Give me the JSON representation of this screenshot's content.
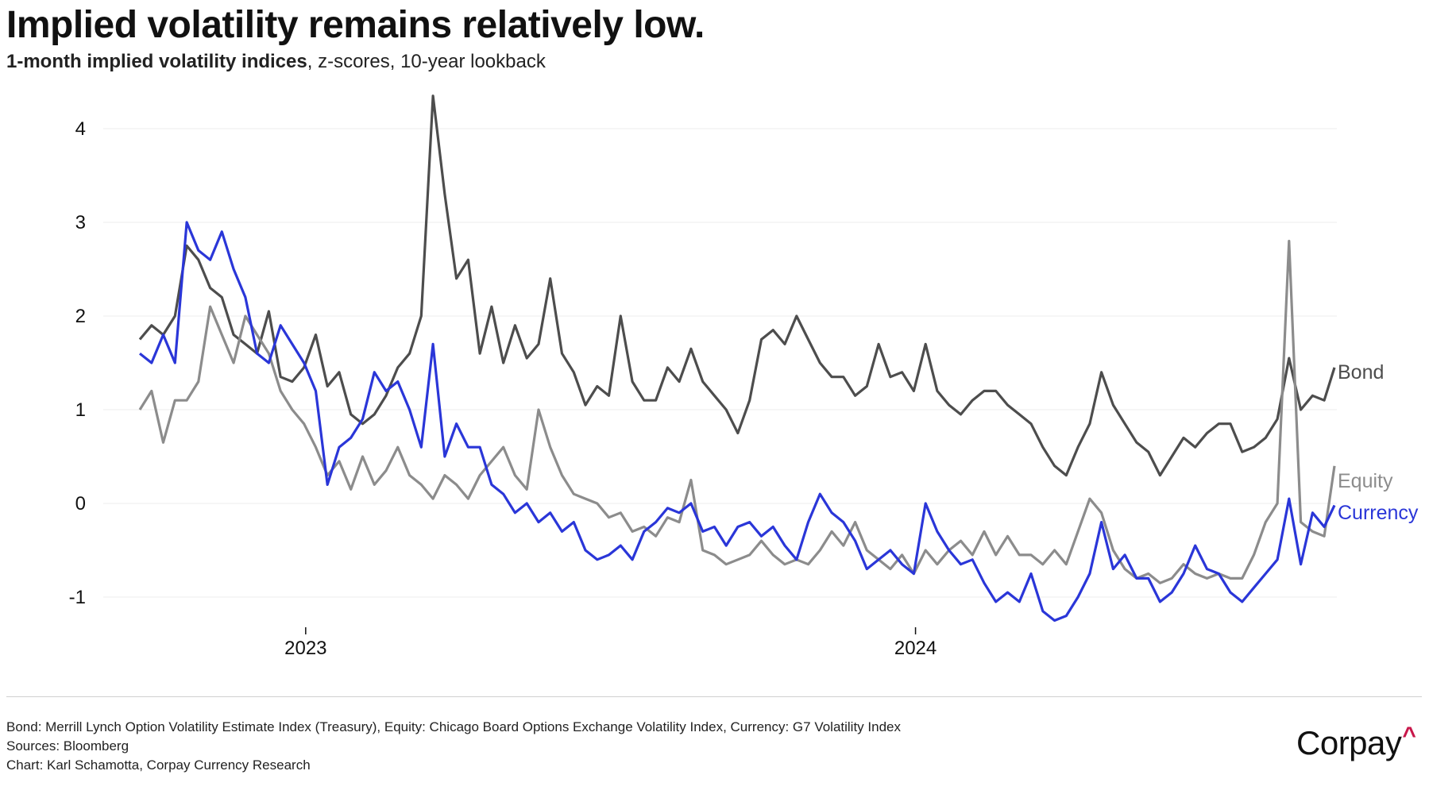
{
  "header": {
    "title": "Implied volatility remains relatively low.",
    "subtitle_strong": "1-month implied volatility indices",
    "subtitle_rest": ", z-scores, 10-year lookback"
  },
  "footer": {
    "note": "Bond: Merrill Lynch Option Volatility Estimate Index (Treasury), Equity: Chicago Board Options Exchange Volatility Index, Currency: G7 Volatility Index",
    "sources": "Sources: Bloomberg",
    "credit": "Chart: Karl Schamotta, Corpay Currency Research"
  },
  "logo": {
    "text": "Corpay",
    "mark": "^",
    "accent_color": "#c8174a"
  },
  "chart_data": {
    "type": "line",
    "title": "Implied volatility remains relatively low.",
    "subtitle": "1-month implied volatility indices, z-scores, 10-year lookback",
    "xlabel": "",
    "ylabel": "",
    "x_start": 2022.728,
    "x_step_years": 0.01923,
    "xlim": [
      2022.728,
      2024.687
    ],
    "ylim": [
      -1.2,
      4.4
    ],
    "yticks": [
      4,
      3,
      2,
      1,
      0,
      -1
    ],
    "ytick_labels": [
      "4",
      "3",
      "2",
      "1",
      "0",
      "-1"
    ],
    "xticks": [
      2023,
      2024
    ],
    "xtick_labels": [
      "2023",
      "2024"
    ],
    "grid": true,
    "legend": "inline-right",
    "series": [
      {
        "name": "Bond",
        "color": "#4d4d4d",
        "values": [
          1.75,
          1.9,
          1.8,
          2.0,
          2.75,
          2.6,
          2.3,
          2.2,
          1.8,
          1.7,
          1.6,
          2.05,
          1.35,
          1.3,
          1.45,
          1.8,
          1.25,
          1.4,
          0.95,
          0.85,
          0.95,
          1.15,
          1.45,
          1.6,
          2.0,
          4.35,
          3.3,
          2.4,
          2.6,
          1.6,
          2.1,
          1.5,
          1.9,
          1.55,
          1.7,
          2.4,
          1.6,
          1.4,
          1.05,
          1.25,
          1.15,
          2.0,
          1.3,
          1.1,
          1.1,
          1.45,
          1.3,
          1.65,
          1.3,
          1.15,
          1.0,
          0.75,
          1.1,
          1.75,
          1.85,
          1.7,
          2.0,
          1.75,
          1.5,
          1.35,
          1.35,
          1.15,
          1.25,
          1.7,
          1.35,
          1.4,
          1.2,
          1.7,
          1.2,
          1.05,
          0.95,
          1.1,
          1.2,
          1.2,
          1.05,
          0.95,
          0.85,
          0.6,
          0.4,
          0.3,
          0.6,
          0.85,
          1.4,
          1.05,
          0.85,
          0.65,
          0.55,
          0.3,
          0.5,
          0.7,
          0.6,
          0.75,
          0.85,
          0.85,
          0.55,
          0.6,
          0.7,
          0.9,
          1.55,
          1.0,
          1.15,
          1.1,
          1.45
        ]
      },
      {
        "name": "Equity",
        "color": "#8c8c8c",
        "values": [
          1.0,
          1.2,
          0.65,
          1.1,
          1.1,
          1.3,
          2.1,
          1.8,
          1.5,
          2.0,
          1.8,
          1.6,
          1.2,
          1.0,
          0.85,
          0.6,
          0.3,
          0.45,
          0.15,
          0.5,
          0.2,
          0.35,
          0.6,
          0.3,
          0.2,
          0.05,
          0.3,
          0.2,
          0.05,
          0.3,
          0.45,
          0.6,
          0.3,
          0.15,
          1.0,
          0.6,
          0.3,
          0.1,
          0.05,
          0.0,
          -0.15,
          -0.1,
          -0.3,
          -0.25,
          -0.35,
          -0.15,
          -0.2,
          0.25,
          -0.5,
          -0.55,
          -0.65,
          -0.6,
          -0.55,
          -0.4,
          -0.55,
          -0.65,
          -0.6,
          -0.65,
          -0.5,
          -0.3,
          -0.45,
          -0.2,
          -0.5,
          -0.6,
          -0.7,
          -0.55,
          -0.75,
          -0.5,
          -0.65,
          -0.5,
          -0.4,
          -0.55,
          -0.3,
          -0.55,
          -0.35,
          -0.55,
          -0.55,
          -0.65,
          -0.5,
          -0.65,
          -0.3,
          0.05,
          -0.1,
          -0.5,
          -0.7,
          -0.8,
          -0.75,
          -0.85,
          -0.8,
          -0.65,
          -0.75,
          -0.8,
          -0.75,
          -0.8,
          -0.8,
          -0.55,
          -0.2,
          0.0,
          2.8,
          -0.2,
          -0.3,
          -0.35,
          0.4
        ]
      },
      {
        "name": "Currency",
        "color": "#2a36d8",
        "values": [
          1.6,
          1.5,
          1.8,
          1.5,
          3.0,
          2.7,
          2.6,
          2.9,
          2.5,
          2.2,
          1.6,
          1.5,
          1.9,
          1.7,
          1.5,
          1.2,
          0.2,
          0.6,
          0.7,
          0.9,
          1.4,
          1.2,
          1.3,
          1.0,
          0.6,
          1.7,
          0.5,
          0.85,
          0.6,
          0.6,
          0.2,
          0.1,
          -0.1,
          0.0,
          -0.2,
          -0.1,
          -0.3,
          -0.2,
          -0.5,
          -0.6,
          -0.55,
          -0.45,
          -0.6,
          -0.3,
          -0.2,
          -0.05,
          -0.1,
          0.0,
          -0.3,
          -0.25,
          -0.45,
          -0.25,
          -0.2,
          -0.35,
          -0.25,
          -0.45,
          -0.6,
          -0.2,
          0.1,
          -0.1,
          -0.2,
          -0.4,
          -0.7,
          -0.6,
          -0.5,
          -0.65,
          -0.75,
          0.0,
          -0.3,
          -0.5,
          -0.65,
          -0.6,
          -0.85,
          -1.05,
          -0.95,
          -1.05,
          -0.75,
          -1.15,
          -1.25,
          -1.2,
          -1.0,
          -0.75,
          -0.2,
          -0.7,
          -0.55,
          -0.8,
          -0.8,
          -1.05,
          -0.95,
          -0.75,
          -0.45,
          -0.7,
          -0.75,
          -0.95,
          -1.05,
          -0.9,
          -0.75,
          -0.6,
          0.05,
          -0.65,
          -0.1,
          -0.25,
          -0.02
        ]
      }
    ]
  }
}
